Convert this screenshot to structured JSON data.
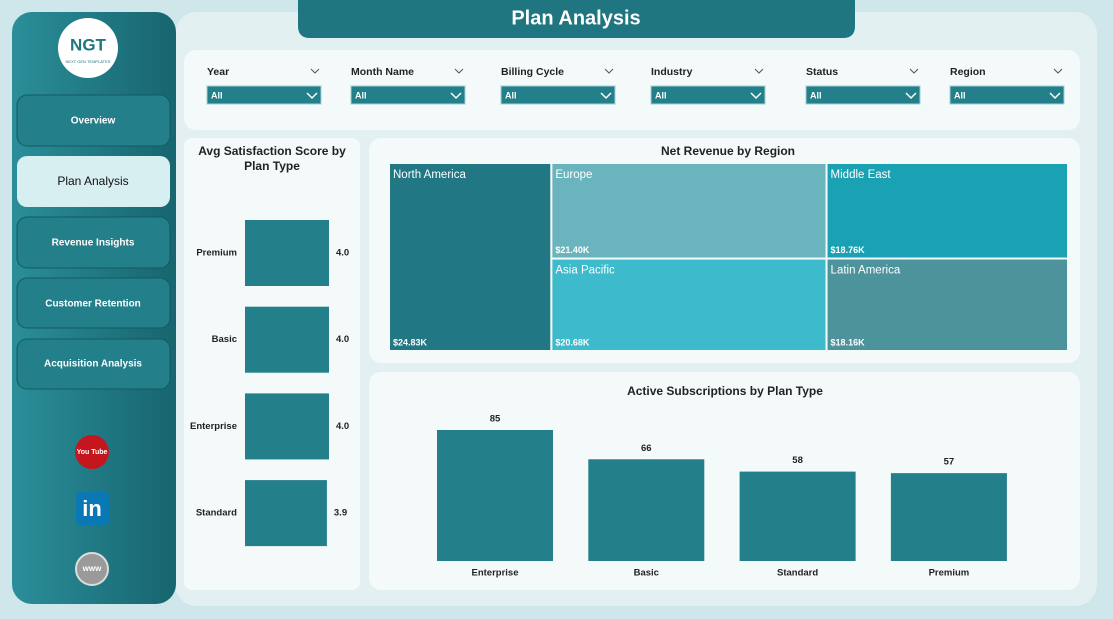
{
  "header": {
    "title": "Plan Analysis"
  },
  "logo": {
    "text": "NGT",
    "subtitle": "NEXT GEN TEMPLATES"
  },
  "nav": [
    "Overview",
    "Plan Analysis",
    "Revenue Insights",
    "Customer Retention",
    "Acquisition Analysis"
  ],
  "filters": [
    {
      "label": "Year",
      "value": "All"
    },
    {
      "label": "Month Name",
      "value": "All"
    },
    {
      "label": "Billing Cycle",
      "value": "All"
    },
    {
      "label": "Industry",
      "value": "All"
    },
    {
      "label": "Status",
      "value": "All"
    },
    {
      "label": "Region",
      "value": "All"
    }
  ],
  "social": [
    "You Tube",
    "in",
    "www"
  ],
  "chart_data": [
    {
      "type": "bar",
      "orientation": "horizontal",
      "title": "Avg Satisfaction Score by Plan Type",
      "categories": [
        "Premium",
        "Basic",
        "Enterprise",
        "Standard"
      ],
      "values": [
        4.0,
        4.0,
        4.0,
        3.9
      ],
      "value_labels": [
        "4.0",
        "4.0",
        "4.0",
        "3.9"
      ],
      "color": "#237f89"
    },
    {
      "type": "treemap",
      "title": "Net Revenue by Region",
      "categories": [
        "North America",
        "Europe",
        "Middle East",
        "Asia Pacific",
        "Latin America"
      ],
      "values": [
        24830,
        21400,
        18760,
        20680,
        18160
      ],
      "value_labels": [
        "$24.83K",
        "$21.40K",
        "$18.76K",
        "$20.68K",
        "$18.16K"
      ],
      "colors": [
        "#217783",
        "#6ab4bd",
        "#1aa1b3",
        "#3dbacb",
        "#4d939c"
      ]
    },
    {
      "type": "column",
      "title": "Active Subscriptions by Plan Type",
      "categories": [
        "Enterprise",
        "Basic",
        "Standard",
        "Premium"
      ],
      "values": [
        85,
        66,
        58,
        57
      ],
      "color": "#237f89"
    }
  ]
}
